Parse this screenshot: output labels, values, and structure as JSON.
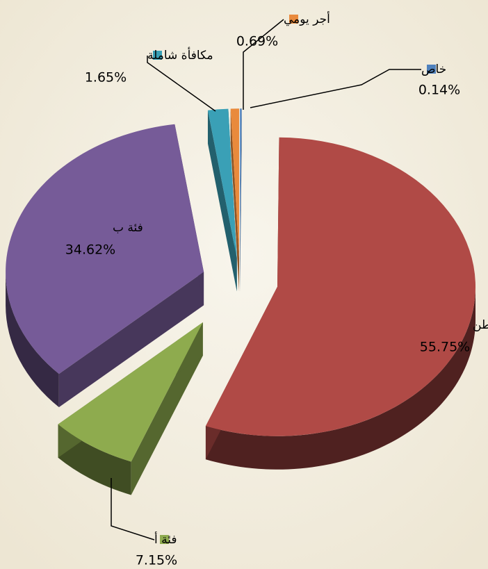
{
  "chart_data": {
    "type": "pie3d",
    "categories": [
      "خاص",
      "مواطن",
      "فئة أ",
      "فئة ب",
      "مكافأة شاملة",
      "أجر يومي"
    ],
    "values": [
      0.14,
      55.75,
      7.15,
      34.62,
      1.65,
      0.69
    ],
    "value_labels": [
      "0.14%",
      "55.75%",
      "7.15%",
      "34.62%",
      "1.65%",
      "0.69%"
    ],
    "colors": [
      "#4f81bd",
      "#b04a46",
      "#8eab4e",
      "#765b98",
      "#3aa0b6",
      "#e98a3c"
    ]
  }
}
